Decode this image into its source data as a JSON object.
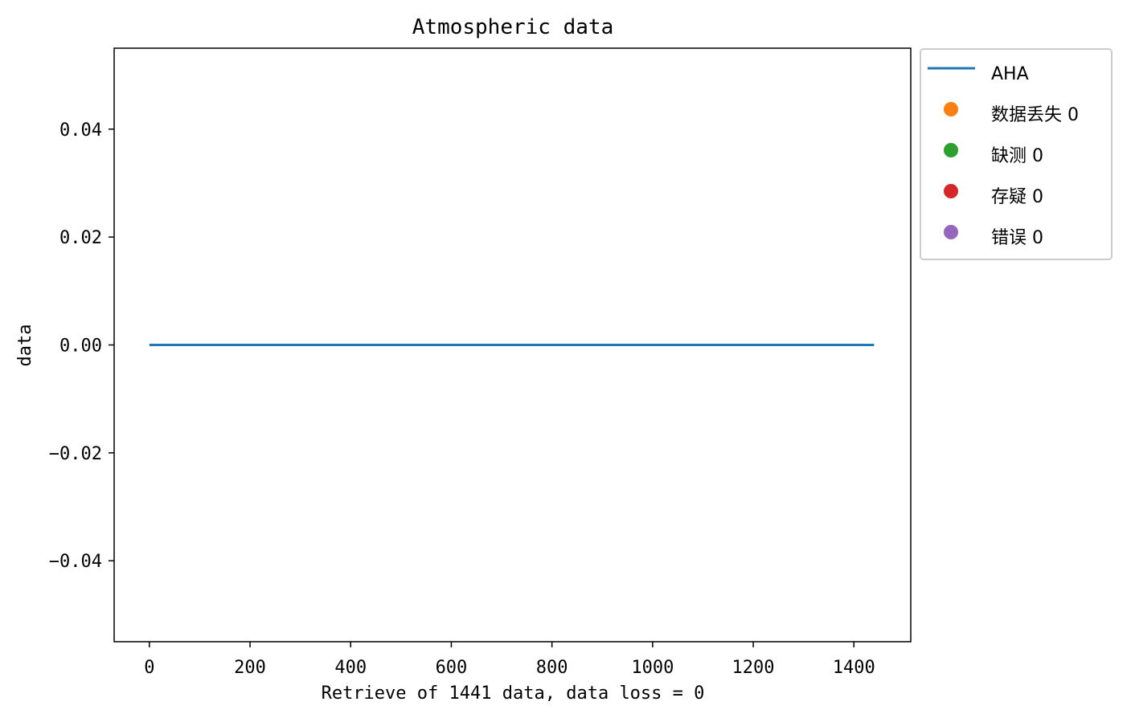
{
  "chart_data": {
    "type": "line",
    "title": "Atmospheric data",
    "xlabel": "Retrieve of 1441 data, data loss = 0",
    "ylabel": "data",
    "xlim": [
      -70,
      1513
    ],
    "ylim": [
      -0.055,
      0.055
    ],
    "xticks": [
      0,
      200,
      400,
      600,
      800,
      1000,
      1200,
      1400
    ],
    "yticks": [
      -0.04,
      -0.02,
      0.0,
      0.02,
      0.04
    ],
    "ytick_labels": [
      "−0.04",
      "−0.02",
      "0.00",
      "0.02",
      "0.04"
    ],
    "grid": false,
    "legend_placement": "outside-right-top",
    "series": [
      {
        "name": "AHA",
        "kind": "line",
        "color": "#1f77b4",
        "x": [
          0,
          1440
        ],
        "y": [
          0,
          0
        ]
      },
      {
        "name": "数据丢失 0",
        "kind": "marker",
        "color": "#ff7f0e",
        "x": [],
        "y": []
      },
      {
        "name": "缺测 0",
        "kind": "marker",
        "color": "#2ca02c",
        "x": [],
        "y": []
      },
      {
        "name": "存疑 0",
        "kind": "marker",
        "color": "#d62728",
        "x": [],
        "y": []
      },
      {
        "name": "错误 0",
        "kind": "marker",
        "color": "#9467bd",
        "x": [],
        "y": []
      }
    ]
  }
}
